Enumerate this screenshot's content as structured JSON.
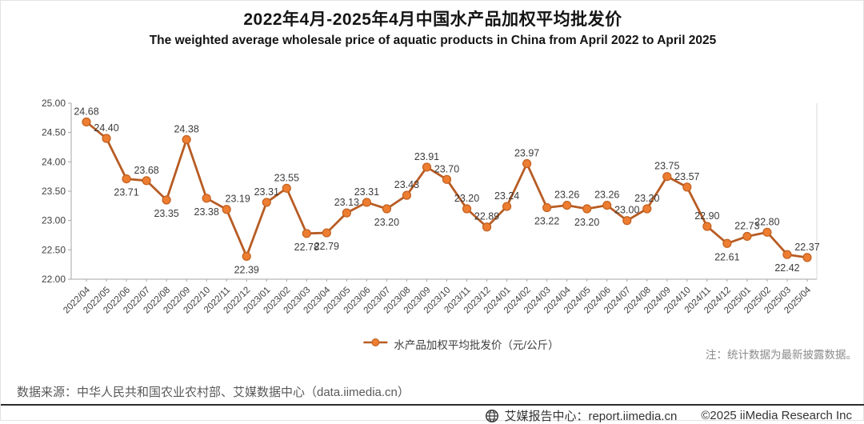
{
  "header": {
    "title_cn": "2022年4月-2025年4月中国水产品加权平均批发价",
    "title_en": "The weighted average wholesale price of aquatic products in China from April 2022 to April 2025"
  },
  "legend": {
    "label": "水产品加权平均批发价（元/公斤）"
  },
  "note": "注：统计数据为最新披露数据。",
  "source": "数据来源：中华人民共和国农业农村部、艾媒数据中心（data.iimedia.cn）",
  "footer": {
    "report_center": "艾媒报告中心：report.iimedia.cn",
    "copyright": "©2025 iiMedia Research Inc"
  },
  "colors": {
    "line": "#b85c24",
    "marker_fill": "#ed7d31",
    "marker_stroke": "#c2601f",
    "axis": "#a6a6a6",
    "plot_right_border": "#d9d9d9",
    "tick_text": "#404040",
    "value_label": "#3b3b3b"
  },
  "chart_data": {
    "type": "line",
    "title": "2022年4月-2025年4月中国水产品加权平均批发价",
    "xlabel": "",
    "ylabel": "",
    "ylim": [
      22.0,
      25.0
    ],
    "ytick_step": 0.5,
    "yticks": [
      22.0,
      22.5,
      23.0,
      23.5,
      24.0,
      24.5,
      25.0
    ],
    "grid": false,
    "legend_position": "bottom",
    "categories": [
      "2022/04",
      "2022/05",
      "2022/06",
      "2022/07",
      "2022/08",
      "2022/09",
      "2022/10",
      "2022/11",
      "2022/12",
      "2023/01",
      "2023/02",
      "2023/03",
      "2023/04",
      "2023/05",
      "2023/06",
      "2023/07",
      "2023/08",
      "2023/09",
      "2023/10",
      "2023/11",
      "2023/12",
      "2024/01",
      "2024/02",
      "2024/03",
      "2024/04",
      "2024/05",
      "2024/06",
      "2024/07",
      "2024/08",
      "2024/09",
      "2024/10",
      "2024/11",
      "2024/12",
      "2025/01",
      "2025/02",
      "2025/03",
      "2025/04"
    ],
    "series": [
      {
        "name": "水产品加权平均批发价（元/公斤）",
        "values": [
          24.68,
          24.4,
          23.71,
          23.68,
          23.35,
          24.38,
          23.38,
          23.19,
          22.39,
          23.31,
          23.55,
          22.78,
          22.79,
          23.13,
          23.31,
          23.2,
          23.43,
          23.91,
          23.7,
          23.2,
          22.89,
          23.24,
          23.97,
          23.22,
          23.26,
          23.2,
          23.26,
          23.0,
          23.2,
          23.75,
          23.57,
          22.9,
          22.61,
          22.73,
          22.8,
          22.42,
          22.37
        ]
      }
    ],
    "label_positions": [
      "above",
      "above",
      "below",
      "above",
      "below",
      "above",
      "below",
      "above-right",
      "below",
      "above",
      "above",
      "below",
      "below",
      "above",
      "above",
      "below",
      "above",
      "above",
      "above",
      "above",
      "above",
      "above",
      "above",
      "below",
      "above",
      "below",
      "above",
      "above",
      "above",
      "above",
      "above",
      "above",
      "below",
      "above",
      "above",
      "below",
      "above"
    ]
  }
}
